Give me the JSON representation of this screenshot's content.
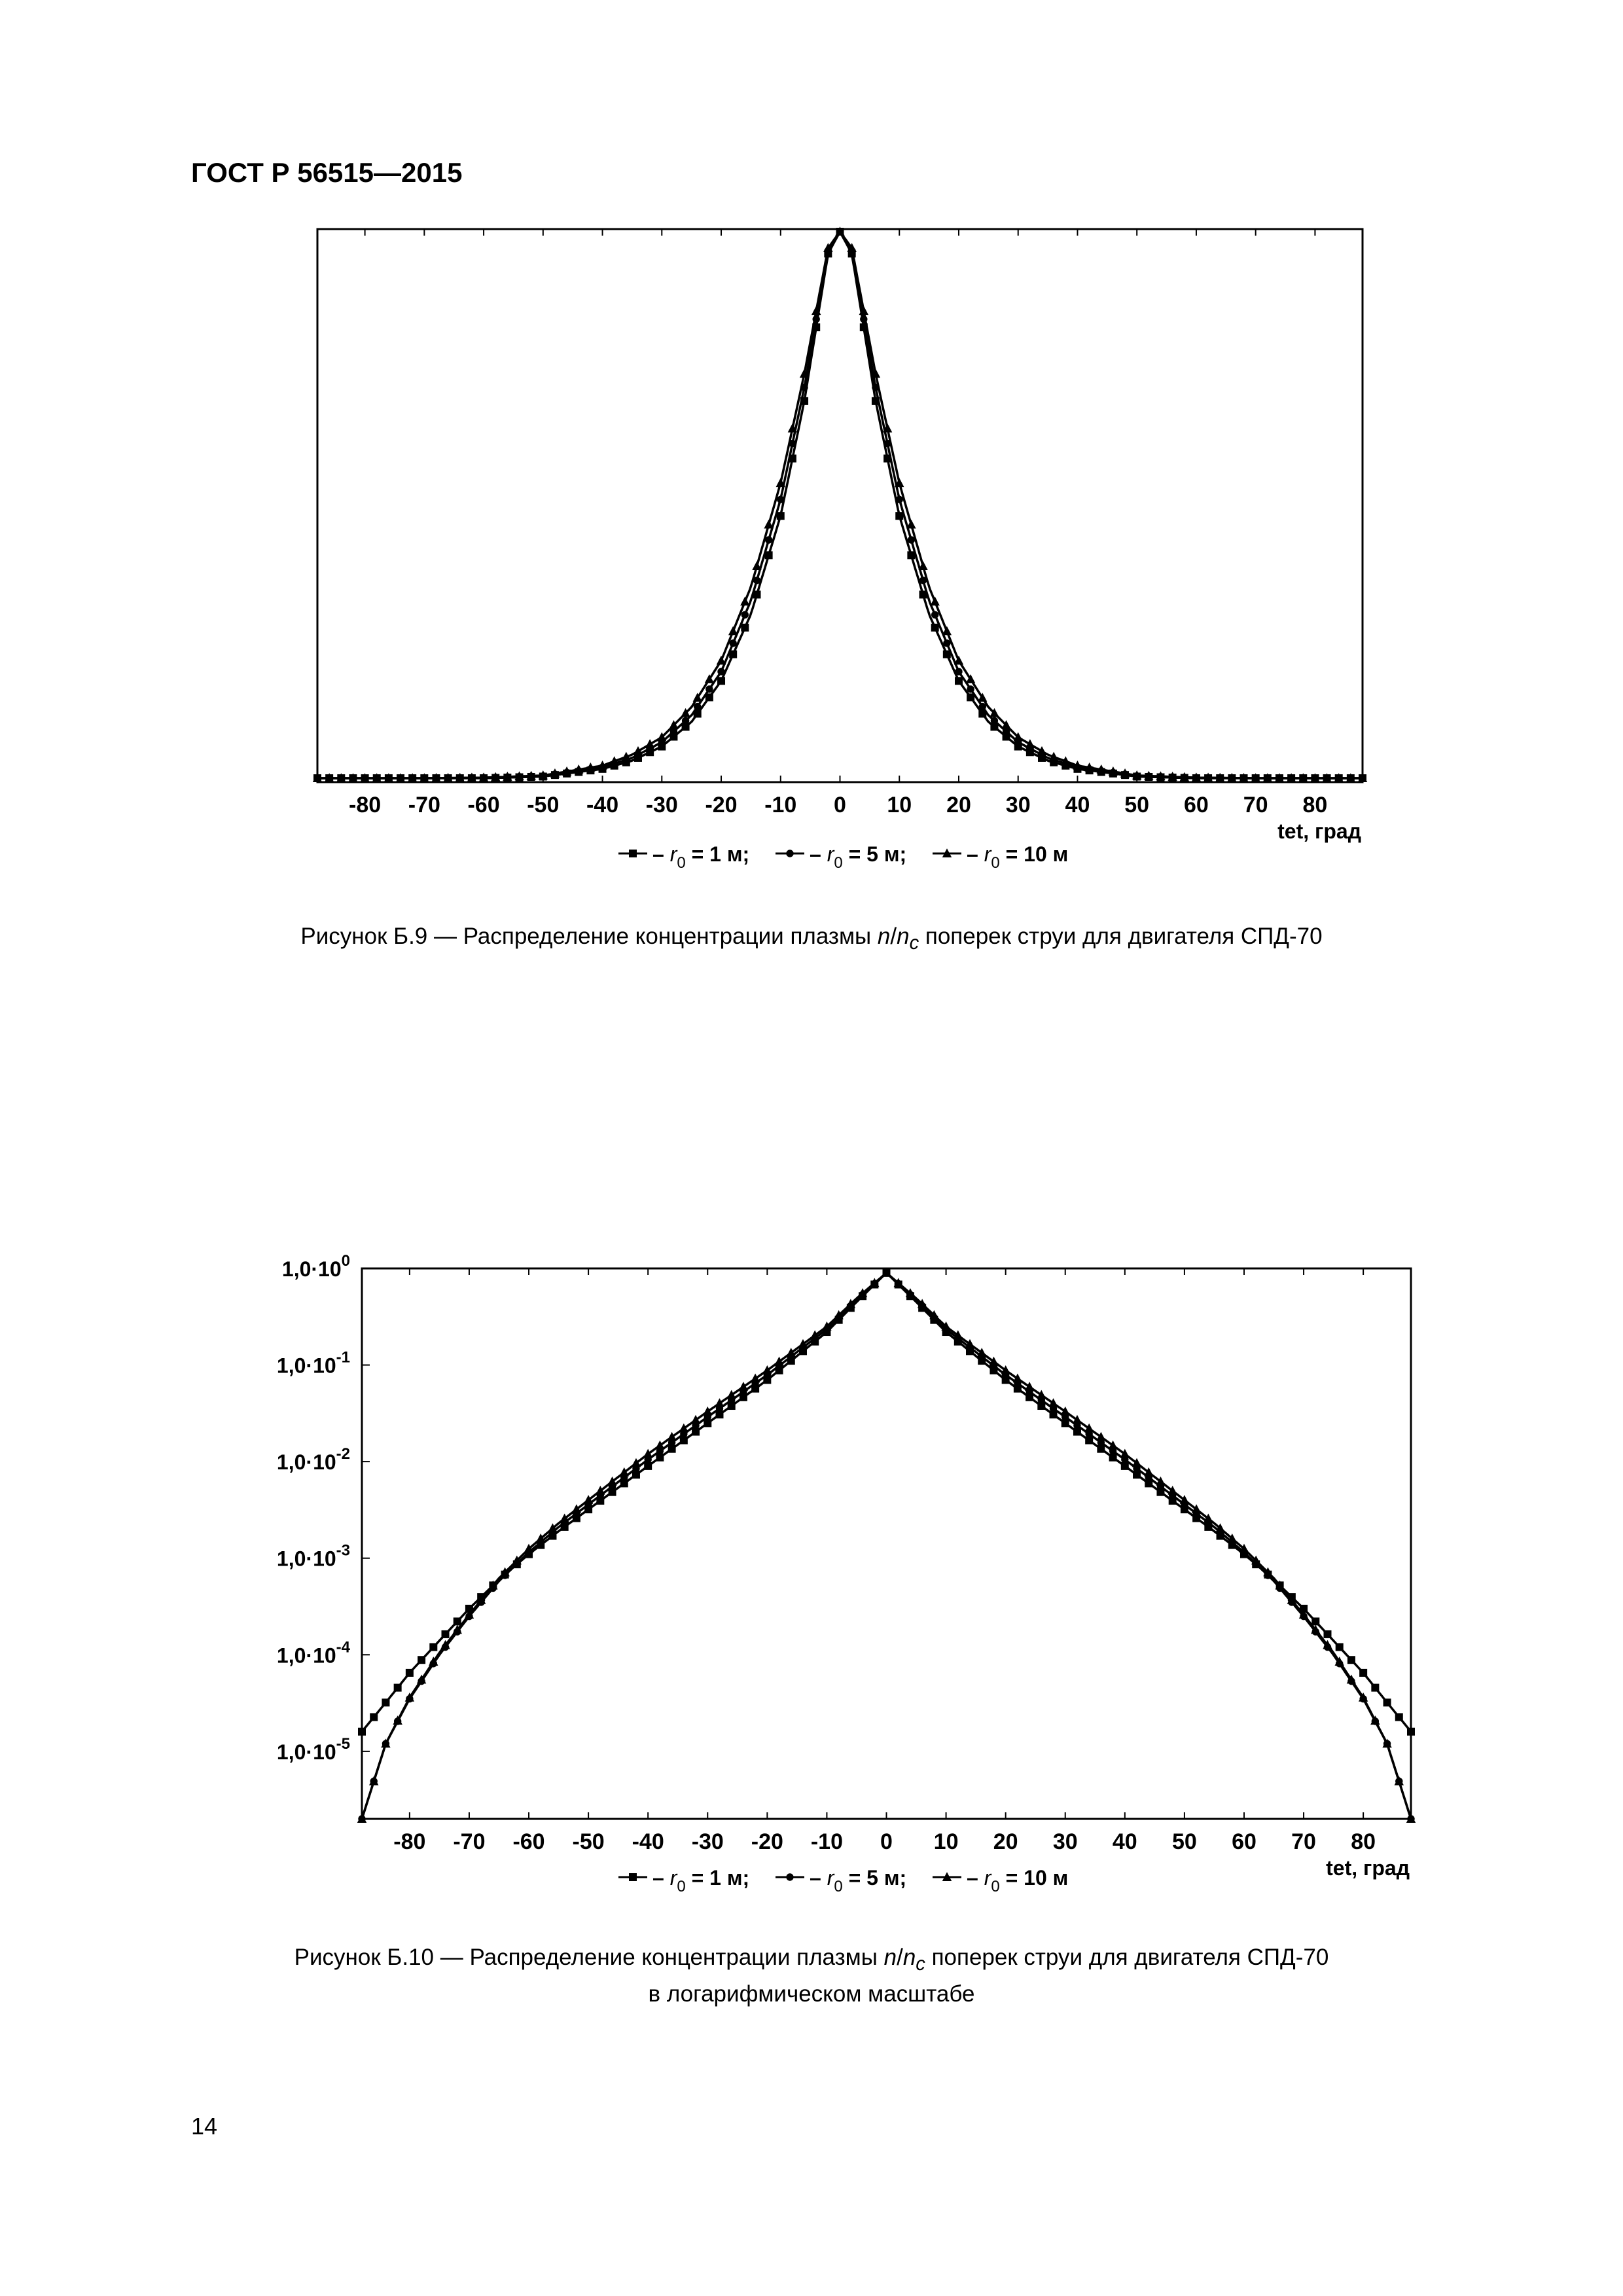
{
  "header": {
    "title": "ГОСТ Р 56515—2015"
  },
  "page_number": "14",
  "figure1": {
    "caption_prefix": "Рисунок  Б.9 — Распределение концентрации плазмы ",
    "caption_n": "n",
    "caption_slash": "/",
    "caption_nc": "n",
    "caption_sub": "c",
    "caption_suffix": " поперек струи для двигателя СПД-70"
  },
  "figure2": {
    "caption_prefix": "Рисунок  Б.10 — Распределение концентрации плазмы ",
    "caption_n": "n",
    "caption_slash": "/",
    "caption_nc": "n",
    "caption_sub": "c",
    "caption_suffix": " поперек струи для двигателя СПД-70",
    "caption_line2": "в логарифмическом масштабе"
  },
  "chart_data": [
    {
      "type": "line",
      "xlabel": "tet, град",
      "ylabel": "",
      "xlim": [
        -88,
        88
      ],
      "ylim": [
        0,
        1.0
      ],
      "x_ticks": [
        -80,
        -70,
        -60,
        -50,
        -40,
        -30,
        -20,
        -10,
        0,
        10,
        20,
        30,
        40,
        50,
        60,
        70,
        80
      ],
      "grid": false,
      "legend_position": "bottom",
      "series": [
        {
          "name": "r0 = 1 м",
          "marker": "square",
          "x": [
            -88,
            -80,
            -70,
            -60,
            -50,
            -40,
            -35,
            -30,
            -25,
            -20,
            -15,
            -10,
            -6,
            -2,
            0,
            2,
            6,
            10,
            15,
            20,
            25,
            30,
            35,
            40,
            50,
            60,
            70,
            80,
            88
          ],
          "y": [
            0.0,
            0.0,
            0.0,
            0.0,
            0.003,
            0.017,
            0.032,
            0.058,
            0.103,
            0.178,
            0.3,
            0.48,
            0.69,
            0.96,
            1.0,
            0.96,
            0.69,
            0.48,
            0.3,
            0.178,
            0.103,
            0.058,
            0.032,
            0.017,
            0.003,
            0.0,
            0.0,
            0.0,
            0.0
          ]
        },
        {
          "name": "r0 = 5 м",
          "marker": "circle",
          "x": [
            -88,
            -80,
            -70,
            -60,
            -50,
            -40,
            -35,
            -30,
            -25,
            -20,
            -15,
            -10,
            -6,
            -2,
            0,
            2,
            6,
            10,
            15,
            20,
            25,
            30,
            35,
            40,
            50,
            60,
            70,
            80,
            88
          ],
          "y": [
            0.0,
            0.0,
            0.0,
            0.001,
            0.004,
            0.02,
            0.037,
            0.066,
            0.115,
            0.195,
            0.325,
            0.51,
            0.715,
            0.965,
            1.0,
            0.965,
            0.715,
            0.51,
            0.325,
            0.195,
            0.115,
            0.066,
            0.037,
            0.02,
            0.004,
            0.001,
            0.0,
            0.0,
            0.0
          ]
        },
        {
          "name": "r0 = 10 м",
          "marker": "triangle",
          "x": [
            -88,
            -80,
            -70,
            -60,
            -50,
            -40,
            -35,
            -30,
            -25,
            -20,
            -15,
            -10,
            -6,
            -2,
            0,
            2,
            6,
            10,
            15,
            20,
            25,
            30,
            35,
            40,
            50,
            60,
            70,
            80,
            88
          ],
          "y": [
            0.0,
            0.0,
            0.0,
            0.001,
            0.005,
            0.023,
            0.043,
            0.075,
            0.13,
            0.215,
            0.35,
            0.54,
            0.74,
            0.97,
            1.0,
            0.97,
            0.74,
            0.54,
            0.35,
            0.215,
            0.13,
            0.075,
            0.043,
            0.023,
            0.005,
            0.001,
            0.0,
            0.0,
            0.0
          ]
        }
      ],
      "legend": [
        {
          "prefix": "– ",
          "r": "r",
          "sub": "0",
          "suffix": " = 1 м;",
          "marker": "square"
        },
        {
          "prefix": "– ",
          "r": "r",
          "sub": "0",
          "suffix": " = 5 м;",
          "marker": "circle"
        },
        {
          "prefix": "– ",
          "r": "r",
          "sub": "0",
          "suffix": " = 10 м",
          "marker": "triangle"
        }
      ]
    },
    {
      "type": "line",
      "xlabel": "tet, град",
      "ylabel": "",
      "yscale": "log",
      "xlim": [
        -88,
        88
      ],
      "ylim": [
        2e-06,
        1.0
      ],
      "x_ticks": [
        -80,
        -70,
        -60,
        -50,
        -40,
        -30,
        -20,
        -10,
        0,
        10,
        20,
        30,
        40,
        50,
        60,
        70,
        80
      ],
      "y_ticks": [
        {
          "base": "1,0·10",
          "exp": "0",
          "value": 1.0
        },
        {
          "base": "1,0·10",
          "exp": "-1",
          "value": 0.1
        },
        {
          "base": "1,0·10",
          "exp": "-2",
          "value": 0.01
        },
        {
          "base": "1,0·10",
          "exp": "-3",
          "value": 0.001
        },
        {
          "base": "1,0·10",
          "exp": "-4",
          "value": 0.0001
        },
        {
          "base": "1,0·10",
          "exp": "-5",
          "value": 1e-05
        }
      ],
      "grid": false,
      "legend_position": "bottom",
      "series": [
        {
          "name": "r0 = 1 м",
          "marker": "square",
          "x": [
            -88,
            -84,
            -80,
            -75,
            -70,
            -65,
            -60,
            -55,
            -50,
            -40,
            -30,
            -20,
            -10,
            -5,
            0,
            5,
            10,
            20,
            30,
            40,
            50,
            55,
            60,
            65,
            70,
            75,
            80,
            84,
            88
          ],
          "y": [
            1.6e-05,
            3.2e-05,
            6.5e-05,
            0.00014,
            0.0003,
            0.0006,
            0.0011,
            0.0019,
            0.0032,
            0.009,
            0.025,
            0.07,
            0.22,
            0.45,
            0.9,
            0.45,
            0.22,
            0.07,
            0.025,
            0.009,
            0.0032,
            0.0019,
            0.0011,
            0.0006,
            0.0003,
            0.00014,
            6.5e-05,
            3.2e-05,
            1.6e-05
          ]
        },
        {
          "name": "r0 = 5 м",
          "marker": "circle",
          "x": [
            -88,
            -84,
            -80,
            -75,
            -70,
            -65,
            -60,
            -55,
            -50,
            -40,
            -30,
            -20,
            -10,
            -5,
            0,
            5,
            10,
            20,
            30,
            40,
            50,
            55,
            60,
            65,
            70,
            75,
            80,
            84,
            88
          ],
          "y": [
            2e-06,
            1.2e-05,
            3.5e-05,
            0.0001,
            0.00025,
            0.00058,
            0.00115,
            0.0021,
            0.0036,
            0.0105,
            0.029,
            0.079,
            0.235,
            0.47,
            0.9,
            0.47,
            0.235,
            0.079,
            0.029,
            0.0105,
            0.0036,
            0.0021,
            0.00115,
            0.00058,
            0.00025,
            0.0001,
            3.5e-05,
            1.2e-05,
            2e-06
          ]
        },
        {
          "name": "r0 = 10 м",
          "marker": "triangle",
          "x": [
            -88,
            -84,
            -80,
            -75,
            -70,
            -65,
            -60,
            -55,
            -50,
            -40,
            -30,
            -20,
            -10,
            -5,
            0,
            5,
            10,
            20,
            30,
            40,
            50,
            55,
            60,
            65,
            70,
            75,
            80,
            84,
            88
          ],
          "y": [
            2e-06,
            1.2e-05,
            3.6e-05,
            0.000105,
            0.00026,
            0.00062,
            0.00125,
            0.0023,
            0.004,
            0.012,
            0.033,
            0.088,
            0.25,
            0.49,
            0.9,
            0.49,
            0.25,
            0.088,
            0.033,
            0.012,
            0.004,
            0.0023,
            0.00125,
            0.00062,
            0.00026,
            0.000105,
            3.6e-05,
            1.2e-05,
            2e-06
          ]
        }
      ],
      "legend": [
        {
          "prefix": "– ",
          "r": "r",
          "sub": "0",
          "suffix": " = 1 м;",
          "marker": "square"
        },
        {
          "prefix": "– ",
          "r": "r",
          "sub": "0",
          "suffix": " = 5 м;",
          "marker": "circle"
        },
        {
          "prefix": "– ",
          "r": "r",
          "sub": "0",
          "suffix": " = 10 м",
          "marker": "triangle"
        }
      ]
    }
  ]
}
